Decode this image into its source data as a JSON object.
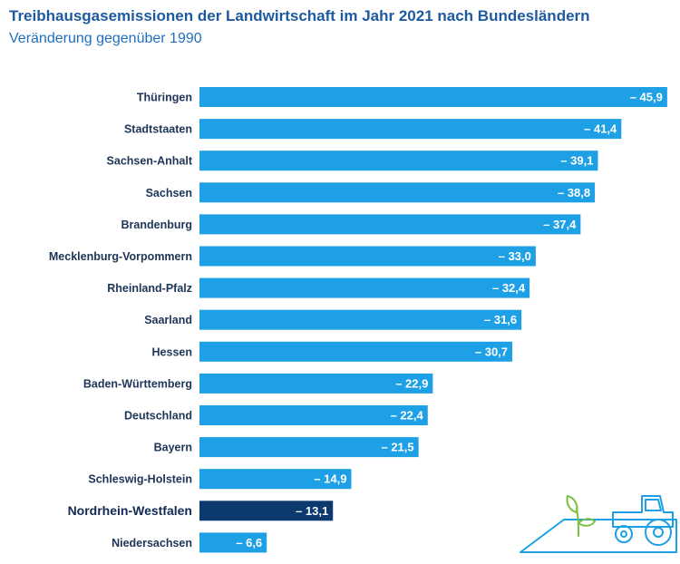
{
  "header": {
    "title": "Treibhausgasemissionen der Landwirtschaft im Jahr 2021 nach Bundesländern",
    "subtitle": "Veränderung gegenüber 1990"
  },
  "colors": {
    "bar": "#1ea0e6",
    "highlight": "#0d3a6e"
  },
  "icons": [
    "seedling-icon",
    "tractor-icon"
  ],
  "chart_data": {
    "type": "bar",
    "orientation": "horizontal",
    "title": "Treibhausgasemissionen der Landwirtschaft im Jahr 2021 nach Bundesländern",
    "subtitle": "Veränderung gegenüber 1990",
    "unit": "",
    "highlight": "Nordrhein-Westfalen",
    "xlim": [
      0,
      46
    ],
    "categories": [
      "Thüringen",
      "Stadtstaaten",
      "Sachsen-Anhalt",
      "Sachsen",
      "Brandenburg",
      "Mecklenburg-Vorpommern",
      "Rheinland-Pfalz",
      "Saarland",
      "Hessen",
      "Baden-Württemberg",
      "Deutschland",
      "Bayern",
      "Schleswig-Holstein",
      "Nordrhein-Westfalen",
      "Niedersachsen"
    ],
    "values": [
      -45.9,
      -41.4,
      -39.1,
      -38.8,
      -37.4,
      -33.0,
      -32.4,
      -31.6,
      -30.7,
      -22.9,
      -22.4,
      -21.5,
      -14.9,
      -13.1,
      -6.6
    ],
    "value_labels": [
      "– 45,9",
      "– 41,4",
      "– 39,1",
      "– 38,8",
      "– 37,4",
      "– 33,0",
      "– 32,4",
      "– 31,6",
      "– 30,7",
      "– 22,9",
      "– 22,4",
      "– 21,5",
      "– 14,9",
      "– 13,1",
      "– 6,6"
    ]
  }
}
